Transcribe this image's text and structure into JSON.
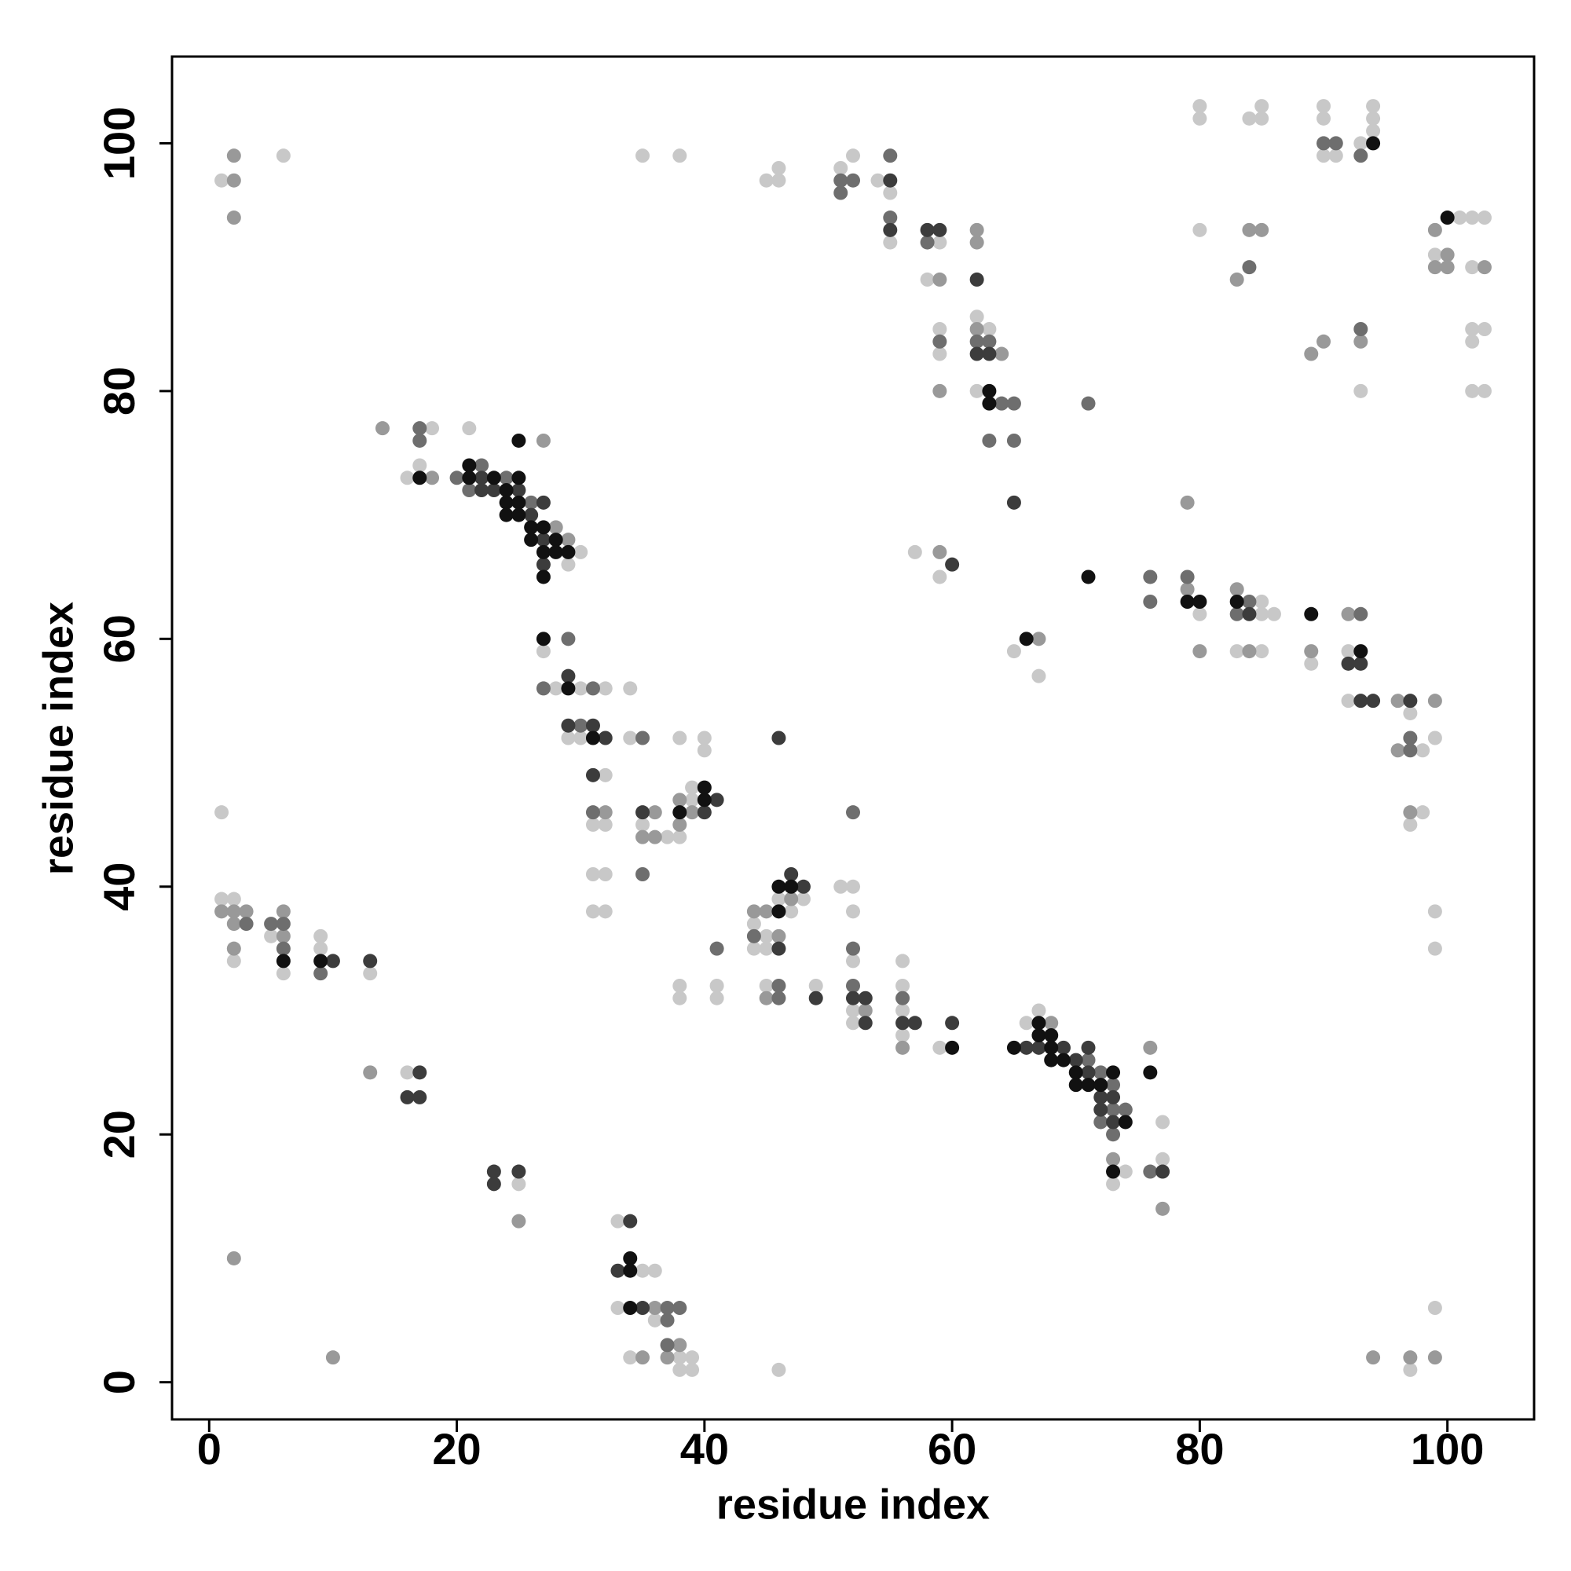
{
  "chart_data": {
    "type": "scatter",
    "xlabel": "residue index",
    "ylabel": "residue index",
    "xlim": [
      -3,
      107
    ],
    "ylim": [
      -3,
      107
    ],
    "xticks": [
      0,
      20,
      40,
      60,
      80,
      100
    ],
    "yticks": [
      0,
      20,
      40,
      60,
      80,
      100
    ],
    "series": [
      {
        "color": "#c8c8c8",
        "x": [
          1,
          6,
          35,
          38,
          45,
          46,
          46,
          51,
          52,
          54,
          55,
          55,
          59,
          58,
          59,
          59,
          62,
          63,
          62,
          80,
          80,
          84,
          85,
          85,
          90,
          90,
          90,
          91,
          93,
          94,
          94,
          94,
          80,
          93,
          101,
          102,
          103,
          99,
          102,
          102,
          103,
          102,
          102,
          103,
          18,
          21,
          17,
          16,
          30,
          29,
          27,
          28,
          30,
          32,
          34,
          29,
          30,
          34,
          38,
          40,
          40,
          32,
          31,
          32,
          31,
          32,
          31,
          32,
          35,
          37,
          38,
          39,
          39,
          1,
          1,
          2,
          2,
          5,
          6,
          9,
          9,
          13,
          16,
          25,
          33,
          35,
          36,
          33,
          36,
          34,
          38,
          39,
          38,
          39,
          46,
          44,
          45,
          44,
          45,
          46,
          48,
          47,
          38,
          38,
          41,
          41,
          45,
          49,
          51,
          52,
          52,
          52,
          52,
          52,
          56,
          56,
          56,
          56,
          59,
          57,
          59,
          65,
          67,
          66,
          67,
          74,
          73,
          77,
          77,
          80,
          85,
          85,
          86,
          83,
          85,
          89,
          92,
          92,
          98,
          99,
          97,
          98,
          97,
          99,
          99,
          99,
          97
        ],
        "y": [
          97,
          99,
          99,
          99,
          97,
          97,
          98,
          98,
          99,
          97,
          96,
          92,
          92,
          89,
          85,
          83,
          86,
          85,
          80,
          103,
          102,
          102,
          103,
          102,
          103,
          102,
          99,
          99,
          100,
          103,
          102,
          101,
          93,
          80,
          94,
          94,
          94,
          91,
          90,
          85,
          85,
          84,
          80,
          80,
          77,
          77,
          74,
          73,
          67,
          66,
          59,
          56,
          56,
          56,
          56,
          52,
          52,
          52,
          52,
          52,
          51,
          49,
          45,
          45,
          41,
          41,
          38,
          38,
          45,
          44,
          44,
          47,
          48,
          46,
          39,
          39,
          34,
          36,
          33,
          36,
          35,
          33,
          25,
          16,
          13,
          9,
          9,
          6,
          5,
          2,
          2,
          2,
          1,
          1,
          1,
          37,
          36,
          35,
          35,
          39,
          39,
          38,
          32,
          31,
          32,
          31,
          32,
          32,
          40,
          40,
          38,
          34,
          30,
          29,
          34,
          32,
          30,
          28,
          27,
          67,
          65,
          59,
          57,
          29,
          30,
          17,
          16,
          18,
          21,
          62,
          63,
          62,
          62,
          59,
          59,
          58,
          59,
          55,
          51,
          52,
          54,
          46,
          45,
          38,
          35,
          6,
          1
        ]
      },
      {
        "color": "#999999",
        "x": [
          2,
          2,
          2,
          59,
          62,
          62,
          62,
          64,
          59,
          84,
          85,
          83,
          89,
          90,
          93,
          99,
          100,
          99,
          100,
          103,
          14,
          27,
          18,
          28,
          29,
          32,
          36,
          35,
          36,
          38,
          39,
          38,
          1,
          2,
          3,
          2,
          2,
          6,
          6,
          13,
          25,
          2,
          10,
          36,
          38,
          35,
          37,
          44,
          45,
          46,
          47,
          45,
          53,
          56,
          59,
          67,
          68,
          73,
          76,
          77,
          79,
          79,
          80,
          83,
          84,
          89,
          92,
          96,
          96,
          99,
          97,
          94,
          97,
          99
        ],
        "y": [
          97,
          99,
          94,
          89,
          93,
          92,
          85,
          83,
          80,
          93,
          93,
          89,
          83,
          84,
          84,
          93,
          91,
          90,
          90,
          90,
          77,
          76,
          73,
          69,
          68,
          46,
          46,
          44,
          44,
          45,
          46,
          47,
          38,
          38,
          38,
          37,
          35,
          38,
          36,
          25,
          13,
          10,
          2,
          6,
          3,
          2,
          2,
          38,
          38,
          36,
          39,
          31,
          30,
          27,
          67,
          60,
          29,
          18,
          27,
          14,
          71,
          64,
          59,
          64,
          59,
          59,
          62,
          55,
          51,
          55,
          46,
          2,
          2,
          2
        ]
      },
      {
        "color": "#6e6e6e",
        "x": [
          51,
          52,
          51,
          55,
          55,
          58,
          59,
          62,
          63,
          64,
          65,
          63,
          65,
          71,
          90,
          91,
          93,
          84,
          93,
          17,
          17,
          20,
          22,
          21,
          24,
          26,
          29,
          27,
          31,
          30,
          35,
          31,
          35,
          3,
          5,
          6,
          6,
          9,
          37,
          38,
          37,
          37,
          41,
          44,
          46,
          46,
          52,
          52,
          52,
          56,
          71,
          72,
          73,
          73,
          74,
          72,
          73,
          76,
          76,
          76,
          79,
          84,
          83,
          93,
          97,
          97
        ],
        "y": [
          97,
          97,
          96,
          99,
          94,
          92,
          84,
          84,
          84,
          79,
          79,
          76,
          76,
          79,
          100,
          100,
          99,
          90,
          85,
          77,
          76,
          73,
          74,
          72,
          73,
          71,
          60,
          56,
          56,
          53,
          52,
          46,
          41,
          37,
          37,
          37,
          35,
          33,
          6,
          6,
          5,
          3,
          35,
          36,
          32,
          31,
          35,
          46,
          32,
          31,
          26,
          25,
          24,
          22,
          22,
          21,
          20,
          17,
          65,
          63,
          65,
          63,
          62,
          62,
          52,
          51
        ]
      },
      {
        "color": "#3c3c3c",
        "x": [
          55,
          55,
          58,
          59,
          62,
          62,
          63,
          65,
          22,
          22,
          23,
          25,
          27,
          26,
          27,
          27,
          29,
          29,
          31,
          32,
          31,
          35,
          41,
          40,
          10,
          13,
          17,
          16,
          17,
          23,
          25,
          23,
          34,
          33,
          35,
          46,
          47,
          48,
          49,
          46,
          52,
          53,
          53,
          56,
          57,
          60,
          60,
          66,
          67,
          69,
          70,
          71,
          71,
          72,
          73,
          72,
          73,
          77,
          84,
          92,
          93,
          93,
          94,
          97
        ],
        "y": [
          97,
          93,
          93,
          93,
          89,
          83,
          83,
          71,
          73,
          72,
          72,
          72,
          71,
          70,
          68,
          66,
          57,
          53,
          53,
          52,
          49,
          46,
          47,
          46,
          34,
          34,
          25,
          23,
          23,
          17,
          17,
          16,
          13,
          9,
          6,
          35,
          41,
          40,
          31,
          52,
          31,
          31,
          29,
          29,
          29,
          29,
          66,
          27,
          27,
          27,
          26,
          25,
          27,
          23,
          23,
          22,
          21,
          17,
          62,
          58,
          58,
          55,
          55,
          55
        ]
      },
      {
        "color": "#111111",
        "x": [
          63,
          63,
          94,
          100,
          25,
          17,
          21,
          21,
          23,
          25,
          24,
          24,
          25,
          24,
          25,
          26,
          27,
          26,
          28,
          27,
          28,
          29,
          27,
          27,
          29,
          31,
          38,
          40,
          40,
          6,
          9,
          34,
          34,
          34,
          46,
          46,
          47,
          60,
          66,
          65,
          67,
          67,
          68,
          68,
          68,
          69,
          70,
          70,
          71,
          72,
          73,
          74,
          73,
          76,
          71,
          79,
          80,
          83,
          89,
          93
        ],
        "y": [
          80,
          79,
          100,
          94,
          76,
          73,
          74,
          73,
          73,
          73,
          72,
          71,
          71,
          70,
          70,
          69,
          69,
          68,
          68,
          67,
          67,
          67,
          65,
          60,
          56,
          52,
          46,
          48,
          47,
          34,
          34,
          10,
          9,
          6,
          38,
          40,
          40,
          27,
          60,
          27,
          29,
          28,
          28,
          27,
          26,
          26,
          25,
          24,
          24,
          24,
          25,
          21,
          17,
          25,
          65,
          63,
          63,
          63,
          62,
          59
        ]
      }
    ]
  }
}
